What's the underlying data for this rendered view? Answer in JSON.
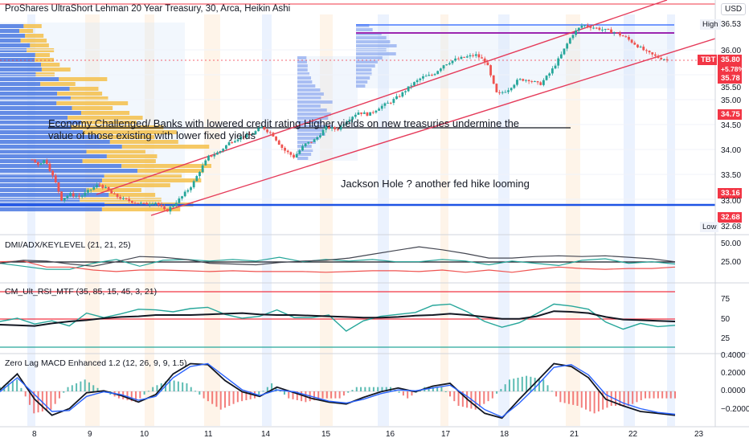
{
  "header": {
    "title": "ProShares UltraShort Lehman 20 Year Treasury, 30, Arca, Heikin Ashi",
    "currency": "USD"
  },
  "price_axis": {
    "ticks": [
      "36.00",
      "35.50",
      "35.00",
      "34.50",
      "34.00",
      "33.50",
      "33.00"
    ],
    "high_label": "High",
    "high_value": "36.53",
    "low_label": "Low",
    "low_value": "32.68",
    "symbol": "TBT",
    "last_price": "35.80",
    "change_pct": "+5.78%",
    "marker_35_78": "35.78",
    "marker_34_75": "34.75",
    "marker_33_16": "33.16",
    "marker_32_68": "32.68"
  },
  "annotations": {
    "economy": "Economy Challenged/ Banks with lowered credit rating Higher yields on new treasuries undermine the value of those existing with lower fixed yields",
    "jackson": "Jackson Hole ? another fed hike looming"
  },
  "panels": {
    "dmi_title": "DMI/ADX/KEYLEVEL (21, 21, 25)",
    "dmi_ticks": [
      "50.00",
      "25.00"
    ],
    "rsi_title": "CM_Ult_RSI_MTF (35, 85, 15, 45, 3, 21)",
    "rsi_ticks": [
      "75",
      "50",
      "25"
    ],
    "macd_title": "Zero Lag MACD Enhanced 1.2 (12, 26, 9, 9, 1.5)",
    "macd_ticks": [
      "0.4000",
      "0.2000",
      "0.0000",
      "−0.2000"
    ]
  },
  "x_axis": {
    "labels": [
      "8",
      "9",
      "10",
      "11",
      "14",
      "15",
      "16",
      "17",
      "18",
      "21",
      "22",
      "23"
    ]
  },
  "chart_data": [
    {
      "type": "candlestick",
      "title": "ProShares UltraShort Lehman 20 Year Treasury, 30, Arca, Heikin Ashi",
      "x": [
        "8",
        "9",
        "10",
        "11",
        "14",
        "15",
        "16",
        "17",
        "18",
        "21",
        "22",
        "23"
      ],
      "ylim": [
        32.4,
        36.7
      ],
      "high": 36.53,
      "low": 32.68,
      "last": 35.8,
      "change_pct": "+5.78%",
      "close_path": [
        [
          7.5,
          33.8
        ],
        [
          7.6,
          33.7
        ],
        [
          7.75,
          33.8
        ],
        [
          7.85,
          33.55
        ],
        [
          7.95,
          33.3
        ],
        [
          8.05,
          33.0
        ],
        [
          8.2,
          33.1
        ],
        [
          8.4,
          33.05
        ],
        [
          8.6,
          33.2
        ],
        [
          8.75,
          33.3
        ],
        [
          8.9,
          33.2
        ],
        [
          9.0,
          33.1
        ],
        [
          9.2,
          33.0
        ],
        [
          9.4,
          32.95
        ],
        [
          9.6,
          32.9
        ],
        [
          9.8,
          32.95
        ],
        [
          10.0,
          32.75
        ],
        [
          10.15,
          32.9
        ],
        [
          10.3,
          33.05
        ],
        [
          10.5,
          33.3
        ],
        [
          10.65,
          33.6
        ],
        [
          10.8,
          33.85
        ],
        [
          11.0,
          33.95
        ],
        [
          11.2,
          34.15
        ],
        [
          11.4,
          34.25
        ],
        [
          11.6,
          34.3
        ],
        [
          11.8,
          34.45
        ],
        [
          12.0,
          34.3
        ],
        [
          12.2,
          34.0
        ],
        [
          12.4,
          33.85
        ],
        [
          12.6,
          34.1
        ],
        [
          12.8,
          34.2
        ],
        [
          13.0,
          34.45
        ],
        [
          13.2,
          34.4
        ],
        [
          13.4,
          34.6
        ],
        [
          13.6,
          34.75
        ],
        [
          13.8,
          34.7
        ],
        [
          14.0,
          34.85
        ],
        [
          14.2,
          34.95
        ],
        [
          14.4,
          35.1
        ],
        [
          14.6,
          35.3
        ],
        [
          14.8,
          35.45
        ],
        [
          15.0,
          35.5
        ],
        [
          15.2,
          35.7
        ],
        [
          15.4,
          35.8
        ],
        [
          15.6,
          35.85
        ],
        [
          15.8,
          35.9
        ],
        [
          16.0,
          35.75
        ],
        [
          16.1,
          35.4
        ],
        [
          16.2,
          35.1
        ],
        [
          16.4,
          35.2
        ],
        [
          16.6,
          35.4
        ],
        [
          16.8,
          35.4
        ],
        [
          17.0,
          35.3
        ],
        [
          17.2,
          35.55
        ],
        [
          17.4,
          35.9
        ],
        [
          17.6,
          36.3
        ],
        [
          17.8,
          36.5
        ],
        [
          18.0,
          36.45
        ],
        [
          18.2,
          36.4
        ],
        [
          18.4,
          36.35
        ],
        [
          18.6,
          36.25
        ],
        [
          18.8,
          36.1
        ],
        [
          19.0,
          35.95
        ],
        [
          19.2,
          35.85
        ],
        [
          19.4,
          35.8
        ]
      ]
    },
    {
      "type": "line",
      "title": "DMI/ADX/KEYLEVEL (21, 21, 25)",
      "ylim": [
        0,
        60
      ],
      "key_level": 25,
      "series": [
        {
          "values": [
            24,
            20,
            16,
            16,
            24,
            29,
            20,
            28,
            29,
            27,
            29,
            27,
            32,
            26,
            29,
            27,
            29,
            26,
            26,
            29,
            27,
            22,
            27,
            24,
            21,
            28,
            30,
            24,
            26,
            23
          ]
        },
        {
          "values": [
            26,
            27,
            19,
            19,
            15,
            13,
            15,
            15,
            14,
            13,
            14,
            13,
            13,
            13,
            12,
            13,
            14,
            14,
            13,
            15,
            12,
            15,
            12,
            16,
            19,
            17,
            16,
            17,
            17,
            19
          ]
        },
        {
          "values": [
            24,
            28,
            27,
            23,
            20,
            26,
            33,
            32,
            29,
            24,
            23,
            22,
            25,
            27,
            28,
            31,
            36,
            41,
            46,
            42,
            37,
            31,
            31,
            33,
            34,
            33,
            34,
            32,
            30,
            26
          ]
        }
      ]
    },
    {
      "type": "line",
      "title": "CM_Ult_RSI_MTF (35, 85, 15, 45, 3, 21)",
      "ylim": [
        0,
        100
      ],
      "levels": [
        85,
        45,
        15
      ],
      "series": [
        {
          "values": [
            50,
            55,
            46,
            51,
            43,
            63,
            56,
            62,
            69,
            68,
            65,
            70,
            72,
            61,
            55,
            58,
            68,
            56,
            56,
            60,
            35,
            51,
            58,
            61,
            64,
            75,
            77,
            65,
            50,
            41,
            48,
            62,
            77,
            74,
            69,
            49,
            38,
            47,
            42,
            44
          ]
        },
        {
          "values": [
            45,
            44,
            43,
            47,
            50,
            52,
            55,
            57,
            58,
            60,
            60,
            60,
            61,
            62,
            63,
            61,
            60,
            60,
            59,
            58,
            57,
            56,
            56,
            57,
            59,
            60,
            62,
            60,
            57,
            54,
            54,
            58,
            66,
            65,
            63,
            57,
            53,
            52,
            51,
            50
          ]
        }
      ]
    },
    {
      "type": "line",
      "title": "Zero Lag MACD Enhanced 1.2 (12, 26, 9, 9, 1.5)",
      "ylim": [
        -0.3,
        0.42
      ],
      "series": [
        {
          "values": [
            0.05,
            0.22,
            -0.05,
            -0.22,
            -0.15,
            0.02,
            0.04,
            -0.01,
            -0.08,
            0.0,
            0.22,
            0.33,
            0.32,
            0.15,
            0.03,
            -0.02,
            0.08,
            0.02,
            -0.04,
            -0.08,
            -0.1,
            -0.03,
            0.03,
            0.07,
            0.03,
            0.09,
            0.12,
            -0.05,
            -0.2,
            -0.25,
            -0.05,
            0.14,
            0.33,
            0.3,
            0.18,
            -0.05,
            -0.12,
            -0.18,
            -0.2,
            -0.22
          ]
        },
        {
          "values": [
            0.03,
            0.18,
            0.0,
            -0.18,
            -0.17,
            -0.02,
            0.03,
            0.0,
            -0.06,
            -0.02,
            0.18,
            0.3,
            0.33,
            0.19,
            0.05,
            -0.01,
            0.05,
            0.03,
            -0.02,
            -0.07,
            -0.09,
            -0.05,
            0.01,
            0.05,
            0.04,
            0.07,
            0.1,
            -0.02,
            -0.16,
            -0.24,
            -0.09,
            0.09,
            0.29,
            0.32,
            0.21,
            0.0,
            -0.09,
            -0.15,
            -0.19,
            -0.21
          ]
        }
      ]
    }
  ]
}
